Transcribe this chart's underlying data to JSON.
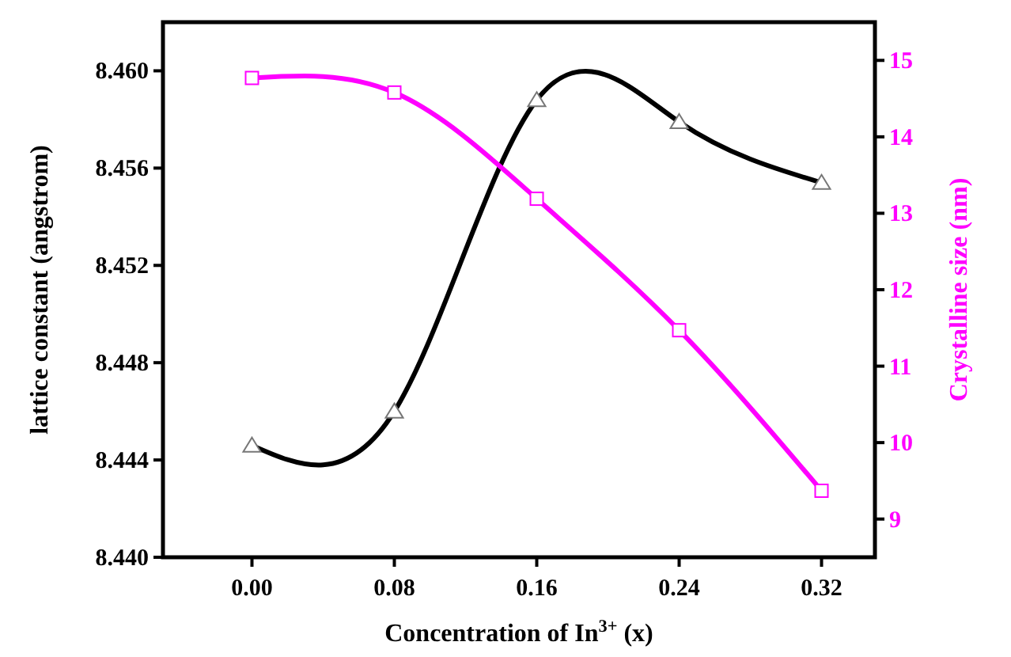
{
  "chart_data": {
    "type": "line",
    "x": [
      0.0,
      0.08,
      0.16,
      0.24,
      0.32
    ],
    "xlabel": "Concentration of In$^{3+}$ (x)",
    "ylabel": "lattice constant (angstrom)",
    "y2label": "Crystalline size (nm)",
    "xlim": [
      -0.05,
      0.35
    ],
    "xticks": [
      {
        "value": 0,
        "label": "0.00"
      },
      0.08,
      0.16,
      0.24,
      0.32
    ],
    "ylim": [
      8.44,
      8.462
    ],
    "yticks": [
      {
        "value": 8.44,
        "label": "8.440"
      },
      8.444,
      8.448,
      8.452,
      8.456,
      {
        "value": 8.46,
        "label": "8.460"
      }
    ],
    "y2lim": [
      8.5,
      15.5
    ],
    "y2ticks": [
      9,
      10,
      11,
      12,
      13,
      14,
      15
    ],
    "grid": false,
    "line_style": "solid",
    "series": [
      {
        "color": "#000000",
        "marker": "triangle",
        "values": [
          8.4446,
          8.446,
          8.4588,
          8.4579,
          8.4554
        ]
      },
      {
        "color": "#ff00ff",
        "marker": "square",
        "axis": "y2",
        "values": [
          14.77,
          14.58,
          13.19,
          11.47,
          9.37
        ]
      }
    ]
  }
}
